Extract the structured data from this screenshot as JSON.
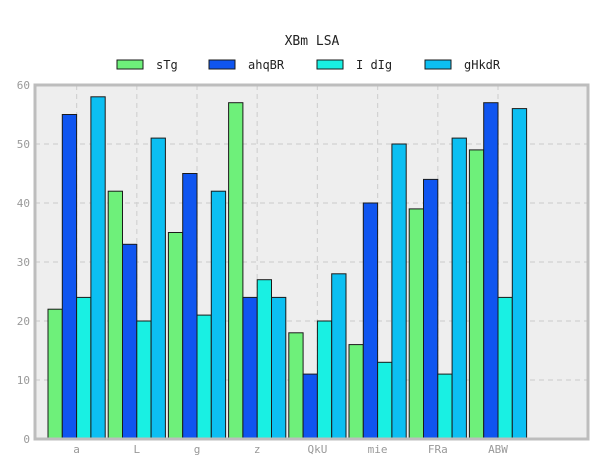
{
  "chart_data": {
    "type": "bar",
    "title": "XBm LSA",
    "xlabel": "",
    "ylabel": "",
    "categories": [
      "a",
      "L",
      "g",
      "z",
      "QkU",
      "mie",
      "FRa",
      "ABW"
    ],
    "ylim": [
      0,
      60
    ],
    "yticks": [
      0,
      10,
      20,
      30,
      40,
      50,
      60
    ],
    "grid": true,
    "legend_position": "top",
    "series": [
      {
        "name": "sTg",
        "color": "#6ef07a",
        "values": [
          22,
          42,
          35,
          57,
          18,
          16,
          39,
          49
        ]
      },
      {
        "name": "ahqBR",
        "color": "#0f55f0",
        "values": [
          55,
          33,
          45,
          24,
          11,
          40,
          44,
          57
        ]
      },
      {
        "name": "I dIg",
        "color": "#19f0e3",
        "values": [
          24,
          20,
          21,
          27,
          20,
          13,
          11,
          24
        ]
      },
      {
        "name": "gHkdR",
        "color": "#0cbff2",
        "values": [
          58,
          51,
          42,
          24,
          28,
          50,
          51,
          56
        ]
      }
    ]
  }
}
